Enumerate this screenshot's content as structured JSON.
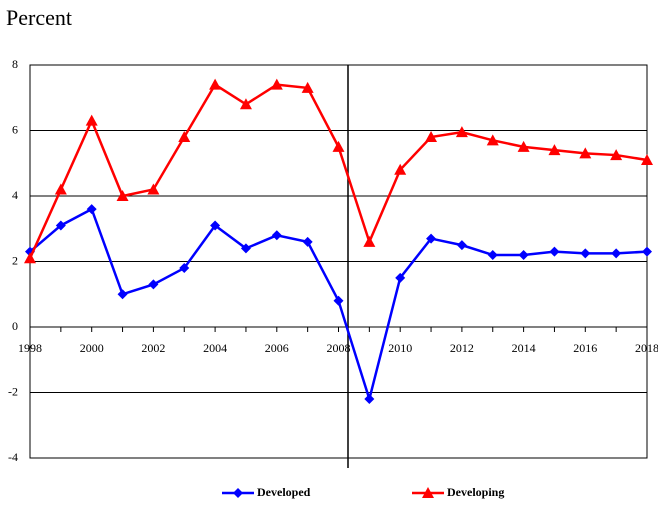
{
  "chart_data": {
    "type": "line",
    "title": "Percent",
    "x": [
      1998,
      1999,
      2000,
      2001,
      2002,
      2003,
      2004,
      2005,
      2006,
      2007,
      2008,
      2009,
      2010,
      2011,
      2012,
      2013,
      2014,
      2015,
      2016,
      2017,
      2018
    ],
    "xlim": [
      1998,
      2018
    ],
    "xticks": [
      1998,
      2000,
      2002,
      2004,
      2006,
      2008,
      2010,
      2012,
      2014,
      2016,
      2018
    ],
    "ylim": [
      -4,
      8
    ],
    "yticks": [
      -4,
      -2,
      0,
      2,
      4,
      6,
      8
    ],
    "grid": true,
    "series": [
      {
        "name": "Developed",
        "color": "#0000ff",
        "marker": "diamond",
        "values": [
          2.3,
          3.1,
          3.6,
          1.0,
          1.3,
          1.8,
          3.1,
          2.4,
          2.8,
          2.6,
          0.8,
          -2.2,
          1.5,
          2.7,
          2.5,
          2.2,
          2.2,
          2.3,
          2.25,
          2.25,
          2.3
        ]
      },
      {
        "name": "Developing",
        "color": "#ff0000",
        "marker": "triangle",
        "values": [
          2.1,
          4.2,
          6.3,
          4.0,
          4.2,
          5.8,
          7.4,
          6.8,
          7.4,
          7.3,
          5.5,
          2.6,
          4.8,
          5.8,
          5.95,
          5.7,
          5.5,
          5.4,
          5.3,
          5.25,
          5.1
        ]
      }
    ]
  }
}
